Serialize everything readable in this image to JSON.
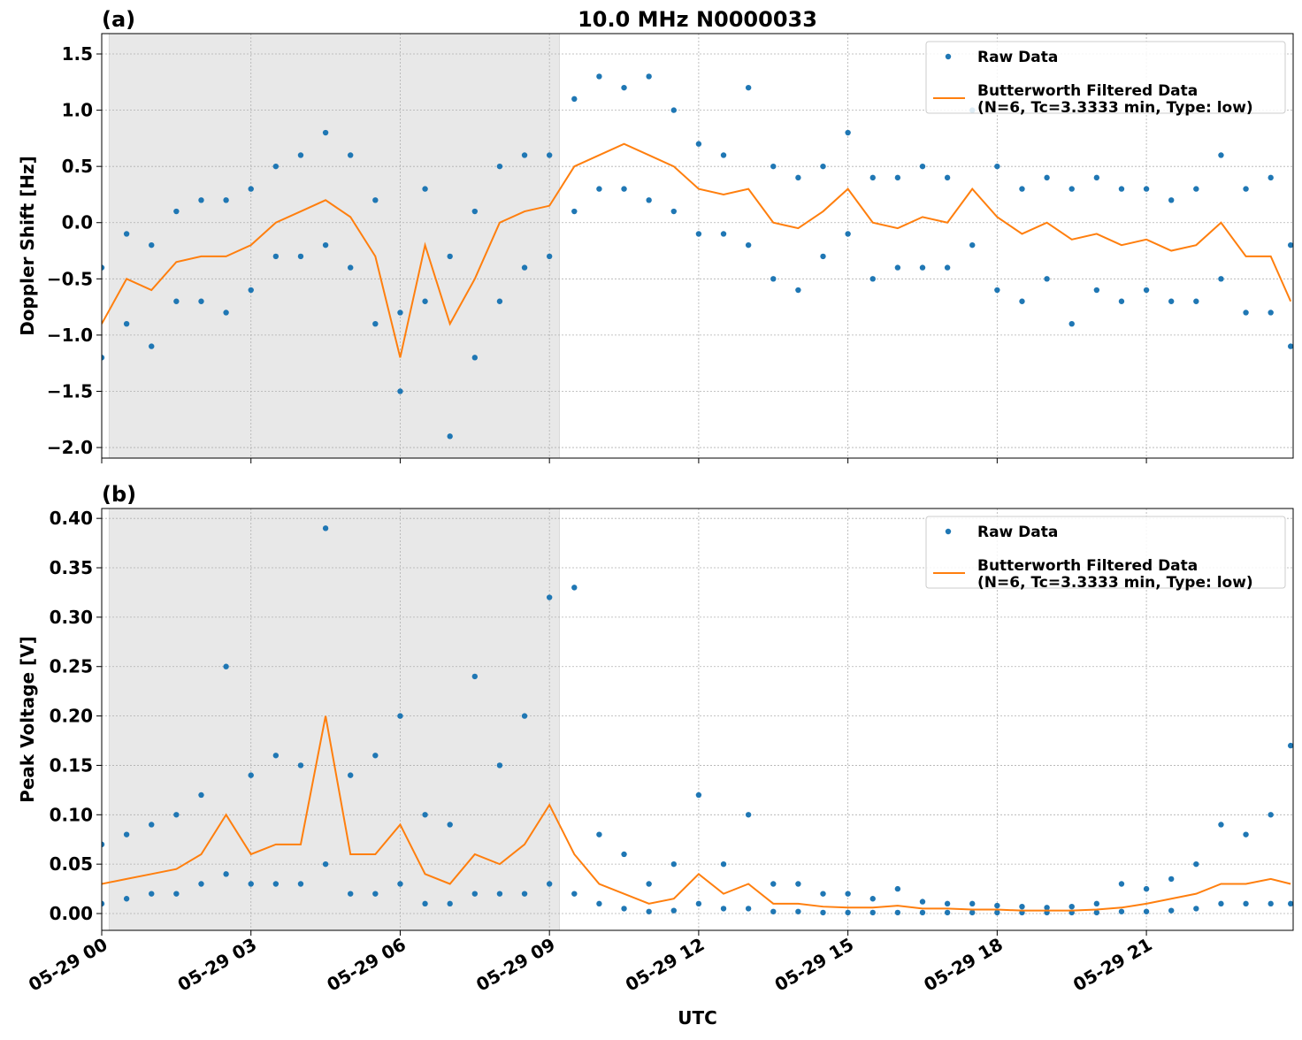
{
  "chart_data": [
    {
      "type": "line",
      "label": "(a)",
      "title": "10.0 MHz N0000033",
      "ylabel": "Doppler Shift [Hz]",
      "xlabel": null,
      "tick_labels": false,
      "grid": true,
      "legend": "upper right",
      "shade": [
        0.15,
        9.2
      ],
      "xlim": [
        0,
        23.95
      ],
      "xticks": [
        {
          "value": 0,
          "label": "05-29 00"
        },
        {
          "value": 3,
          "label": "05-29 03"
        },
        {
          "value": 6,
          "label": "05-29 06"
        },
        {
          "value": 9,
          "label": "05-29 09"
        },
        {
          "value": 12,
          "label": "05-29 12"
        },
        {
          "value": 15,
          "label": "05-29 15"
        },
        {
          "value": 18,
          "label": "05-29 18"
        },
        {
          "value": 21,
          "label": "05-29 21"
        }
      ],
      "ylim": [
        -2.094,
        1.681
      ],
      "yticks": [
        {
          "value": -2,
          "label": "−2.0"
        },
        {
          "value": -1.5,
          "label": "−1.5"
        },
        {
          "value": -1,
          "label": "−1.0"
        },
        {
          "value": -0.5,
          "label": "−0.5"
        },
        {
          "value": 0,
          "label": "0.0"
        },
        0.5,
        {
          "value": 1,
          "label": "1.0"
        },
        1.5
      ],
      "series": [
        {
          "name": "Raw Data",
          "color": "#1f77b4",
          "marker": true,
          "x": [
            0,
            0,
            0.5,
            0.5,
            1,
            1,
            1.5,
            1.5,
            2,
            2,
            2.5,
            2.5,
            3,
            3,
            3.5,
            3.5,
            4,
            4,
            4.5,
            4.5,
            5,
            5,
            5.5,
            5.5,
            6,
            6,
            6.5,
            6.5,
            7,
            7,
            7.5,
            7.5,
            8,
            8,
            8.5,
            8.5,
            9,
            9,
            9.5,
            9.5,
            10,
            10,
            10.5,
            10.5,
            11,
            11,
            11.5,
            11.5,
            12,
            12,
            12.5,
            12.5,
            13,
            13,
            13.5,
            13.5,
            14,
            14,
            14.5,
            14.5,
            15,
            15,
            15.5,
            15.5,
            16,
            16,
            16.5,
            16.5,
            17,
            17,
            17.5,
            17.5,
            18,
            18,
            18.5,
            18.5,
            19,
            19,
            19.5,
            19.5,
            20,
            20,
            20.5,
            20.5,
            21,
            21,
            21.5,
            21.5,
            22,
            22,
            22.5,
            22.5,
            23,
            23,
            23.5,
            23.5,
            23.9,
            23.9
          ],
          "values": [
            -0.4,
            -1.2,
            -0.1,
            -0.9,
            -0.2,
            -1.1,
            0.1,
            -0.7,
            0.2,
            -0.7,
            0.2,
            -0.8,
            0.3,
            -0.6,
            0.5,
            -0.3,
            0.6,
            -0.3,
            0.8,
            -0.2,
            0.6,
            -0.4,
            0.2,
            -0.9,
            -0.8,
            -1.5,
            0.3,
            -0.7,
            -0.3,
            -1.9,
            0.1,
            -1.2,
            0.5,
            -0.7,
            0.6,
            -0.4,
            0.6,
            -0.3,
            1.1,
            0.1,
            1.3,
            0.3,
            1.2,
            0.3,
            1.3,
            0.2,
            1.0,
            0.1,
            0.7,
            -0.1,
            0.6,
            -0.1,
            1.2,
            -0.2,
            0.5,
            -0.5,
            0.4,
            -0.6,
            0.5,
            -0.3,
            0.8,
            -0.1,
            0.4,
            -0.5,
            0.4,
            -0.4,
            0.5,
            -0.4,
            0.4,
            -0.4,
            1.0,
            -0.2,
            0.5,
            -0.6,
            0.3,
            -0.7,
            0.4,
            -0.5,
            0.3,
            -0.9,
            0.4,
            -0.6,
            0.3,
            -0.7,
            0.3,
            -0.6,
            0.2,
            -0.7,
            0.3,
            -0.7,
            0.6,
            -0.5,
            0.3,
            -0.8,
            0.4,
            -0.8,
            -0.2,
            -1.1
          ]
        },
        {
          "name": "Butterworth Filtered Data\n(N=6, Tc=3.3333 min, Type: low)",
          "color": "#ff7f0e",
          "marker": false,
          "x": [
            0,
            0.5,
            1,
            1.5,
            2,
            2.5,
            3,
            3.5,
            4,
            4.5,
            5,
            5.5,
            6,
            6.5,
            7,
            7.5,
            8,
            8.5,
            9,
            9.5,
            10,
            10.5,
            11,
            11.5,
            12,
            12.5,
            13,
            13.5,
            14,
            14.5,
            15,
            15.5,
            16,
            16.5,
            17,
            17.5,
            18,
            18.5,
            19,
            19.5,
            20,
            20.5,
            21,
            21.5,
            22,
            22.5,
            23,
            23.5,
            23.9
          ],
          "values": [
            -0.9,
            -0.5,
            -0.6,
            -0.35,
            -0.3,
            -0.3,
            -0.2,
            0.0,
            0.1,
            0.2,
            0.05,
            -0.3,
            -1.2,
            -0.2,
            -0.9,
            -0.5,
            0.0,
            0.1,
            0.15,
            0.5,
            0.6,
            0.7,
            0.6,
            0.5,
            0.3,
            0.25,
            0.3,
            0.0,
            -0.05,
            0.1,
            0.3,
            0.0,
            -0.05,
            0.05,
            0.0,
            0.3,
            0.05,
            -0.1,
            0.0,
            -0.15,
            -0.1,
            -0.2,
            -0.15,
            -0.25,
            -0.2,
            0.0,
            -0.3,
            -0.3,
            -0.7
          ]
        }
      ]
    },
    {
      "type": "line",
      "label": "(b)",
      "title": null,
      "ylabel": "Peak Voltage [V]",
      "xlabel": "UTC",
      "tick_labels": true,
      "grid": true,
      "legend": "upper right",
      "shade": [
        0.15,
        9.2
      ],
      "xlim": [
        0,
        23.95
      ],
      "xticks": [
        {
          "value": 0,
          "label": "05-29 00"
        },
        {
          "value": 3,
          "label": "05-29 03"
        },
        {
          "value": 6,
          "label": "05-29 06"
        },
        {
          "value": 9,
          "label": "05-29 09"
        },
        {
          "value": 12,
          "label": "05-29 12"
        },
        {
          "value": 15,
          "label": "05-29 15"
        },
        {
          "value": 18,
          "label": "05-29 18"
        },
        {
          "value": 21,
          "label": "05-29 21"
        }
      ],
      "ylim": [
        -0.017,
        0.41
      ],
      "yticks": [
        {
          "value": 0,
          "label": "0.00"
        },
        0.05,
        {
          "value": 0.1,
          "label": "0.10"
        },
        0.15,
        {
          "value": 0.2,
          "label": "0.20"
        },
        0.25,
        {
          "value": 0.3,
          "label": "0.30"
        },
        0.35,
        {
          "value": 0.4,
          "label": "0.40"
        }
      ],
      "series": [
        {
          "name": "Raw Data",
          "color": "#1f77b4",
          "marker": true,
          "x": [
            0,
            0,
            0.5,
            0.5,
            1,
            1,
            1.5,
            1.5,
            2,
            2,
            2.5,
            2.5,
            3,
            3,
            3.5,
            3.5,
            4,
            4,
            4.5,
            4.5,
            5,
            5,
            5.5,
            5.5,
            6,
            6,
            6.5,
            6.5,
            7,
            7,
            7.5,
            7.5,
            8,
            8,
            8.5,
            8.5,
            9,
            9,
            9.5,
            9.5,
            10,
            10,
            10.5,
            10.5,
            11,
            11,
            11.5,
            11.5,
            12,
            12,
            12.5,
            12.5,
            13,
            13,
            13.5,
            13.5,
            14,
            14,
            14.5,
            14.5,
            15,
            15,
            15.5,
            15.5,
            16,
            16,
            16.5,
            16.5,
            17,
            17,
            17.5,
            17.5,
            18,
            18,
            18.5,
            18.5,
            19,
            19,
            19.5,
            19.5,
            20,
            20,
            20.5,
            20.5,
            21,
            21,
            21.5,
            21.5,
            22,
            22,
            22.5,
            22.5,
            23,
            23,
            23.5,
            23.5,
            23.9,
            23.9
          ],
          "values": [
            0.07,
            0.01,
            0.08,
            0.015,
            0.09,
            0.02,
            0.1,
            0.02,
            0.12,
            0.03,
            0.25,
            0.04,
            0.14,
            0.03,
            0.16,
            0.03,
            0.15,
            0.03,
            0.39,
            0.05,
            0.14,
            0.02,
            0.16,
            0.02,
            0.2,
            0.03,
            0.1,
            0.01,
            0.09,
            0.01,
            0.24,
            0.02,
            0.15,
            0.02,
            0.2,
            0.02,
            0.32,
            0.03,
            0.33,
            0.02,
            0.08,
            0.01,
            0.06,
            0.005,
            0.03,
            0.002,
            0.05,
            0.003,
            0.12,
            0.01,
            0.05,
            0.005,
            0.1,
            0.005,
            0.03,
            0.002,
            0.03,
            0.002,
            0.02,
            0.001,
            0.02,
            0.001,
            0.015,
            0.001,
            0.025,
            0.001,
            0.012,
            0.001,
            0.01,
            0.001,
            0.01,
            0.001,
            0.008,
            0.001,
            0.007,
            0.001,
            0.006,
            0.001,
            0.007,
            0.001,
            0.01,
            0.001,
            0.03,
            0.002,
            0.025,
            0.002,
            0.035,
            0.003,
            0.05,
            0.005,
            0.09,
            0.01,
            0.08,
            0.01,
            0.1,
            0.01,
            0.17,
            0.01
          ]
        },
        {
          "name": "Butterworth Filtered Data\n(N=6, Tc=3.3333 min, Type: low)",
          "color": "#ff7f0e",
          "marker": false,
          "x": [
            0,
            0.5,
            1,
            1.5,
            2,
            2.5,
            3,
            3.5,
            4,
            4.5,
            5,
            5.5,
            6,
            6.5,
            7,
            7.5,
            8,
            8.5,
            9,
            9.5,
            10,
            10.5,
            11,
            11.5,
            12,
            12.5,
            13,
            13.5,
            14,
            14.5,
            15,
            15.5,
            16,
            16.5,
            17,
            17.5,
            18,
            18.5,
            19,
            19.5,
            20,
            20.5,
            21,
            21.5,
            22,
            22.5,
            23,
            23.5,
            23.9
          ],
          "values": [
            0.03,
            0.035,
            0.04,
            0.045,
            0.06,
            0.1,
            0.06,
            0.07,
            0.07,
            0.2,
            0.06,
            0.06,
            0.09,
            0.04,
            0.03,
            0.06,
            0.05,
            0.07,
            0.11,
            0.06,
            0.03,
            0.02,
            0.01,
            0.015,
            0.04,
            0.02,
            0.03,
            0.01,
            0.01,
            0.007,
            0.006,
            0.006,
            0.008,
            0.005,
            0.005,
            0.004,
            0.004,
            0.003,
            0.003,
            0.003,
            0.004,
            0.006,
            0.01,
            0.015,
            0.02,
            0.03,
            0.03,
            0.035,
            0.03
          ]
        }
      ]
    }
  ]
}
